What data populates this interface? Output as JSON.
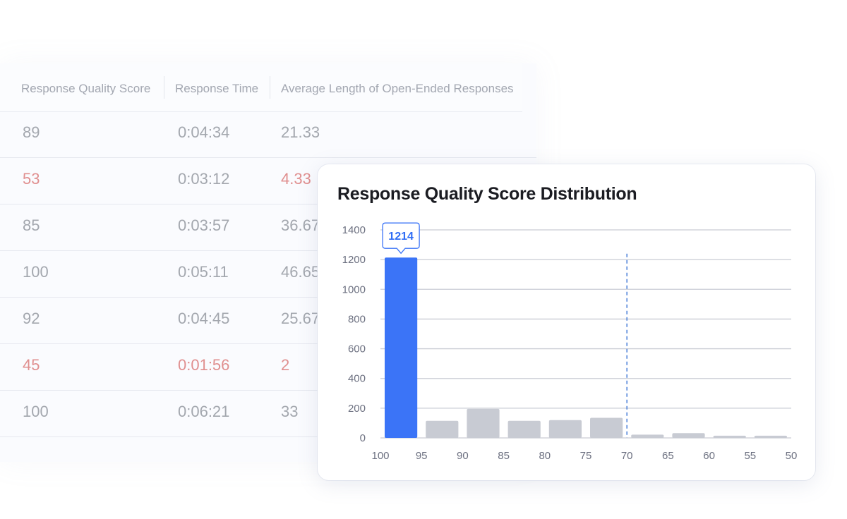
{
  "table": {
    "headers": [
      "Response Quality Score",
      "Response Time",
      "Average Length of Open-Ended Responses"
    ],
    "rows": [
      {
        "score": "89",
        "time": "0:04:34",
        "length": "21.33",
        "flag": false,
        "time_flag": false
      },
      {
        "score": "53",
        "time": "0:03:12",
        "length": "4.33",
        "flag": true,
        "time_flag": false
      },
      {
        "score": "85",
        "time": "0:03:57",
        "length": "36.67",
        "flag": false,
        "time_flag": false
      },
      {
        "score": "100",
        "time": "0:05:11",
        "length": "46.65",
        "flag": false,
        "time_flag": false
      },
      {
        "score": "92",
        "time": "0:04:45",
        "length": "25.67",
        "flag": false,
        "time_flag": false
      },
      {
        "score": "45",
        "time": "0:01:56",
        "length": "2",
        "flag": true,
        "time_flag": true
      },
      {
        "score": "100",
        "time": "0:06:21",
        "length": "33",
        "flag": false,
        "time_flag": false
      }
    ]
  },
  "colors": {
    "highlight_bar": "#3b74f7",
    "bar": "#c8cbd3",
    "grid": "#c9ccd4",
    "threshold": "#4a7fd8",
    "warn_text": "#e08f8f"
  },
  "chart_data": {
    "type": "bar",
    "title": "Response Quality Score Distribution",
    "xlabel": "",
    "ylabel": "",
    "bin_edges": [
      "100",
      "95",
      "90",
      "85",
      "80",
      "75",
      "70",
      "65",
      "60",
      "55",
      "50"
    ],
    "values": [
      1214,
      115,
      195,
      115,
      120,
      135,
      22,
      32,
      15,
      15
    ],
    "highlight_index": 0,
    "highlight_label": "1214",
    "ylim": [
      0,
      1400
    ],
    "yticks": [
      "0",
      "200",
      "400",
      "600",
      "800",
      "1000",
      "1200",
      "1400"
    ],
    "threshold_x": 70,
    "grid": true
  }
}
